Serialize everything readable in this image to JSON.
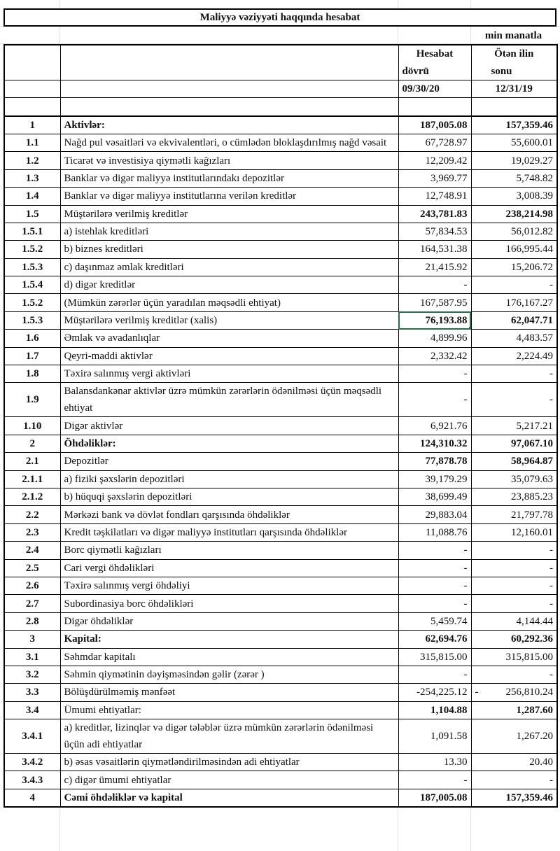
{
  "title": "Maliyyə vəziyyəti haqqında hesabat",
  "unit": "min manatla",
  "header": {
    "col1_line1": "Hesabat",
    "col1_line2": "dövrü",
    "col1_date": "09/30/20",
    "col2_line1": "Ötən ilin",
    "col2_line2": "sonu",
    "col2_date": "12/31/19"
  },
  "selection_color": "#217346",
  "rows": [
    {
      "no": "1",
      "label": "Aktivlər:",
      "v1": "187,005.08",
      "v2": "157,359.46",
      "emphasis": "all"
    },
    {
      "no": "1.1",
      "label": "Nağd pul vəsaitləri və  ekvivalentləri, o cümlədən bloklaşdırılmış nağd vəsait",
      "v1": "67,728.97",
      "v2": "55,600.01"
    },
    {
      "no": "1.2",
      "label": "Ticarət və investisiya qiymətli kağızları",
      "v1": "12,209.42",
      "v2": "19,029.27"
    },
    {
      "no": "1.3",
      "label": "Banklar və digər maliyyə institutlarındakı depozitlər",
      "v1": "3,969.77",
      "v2": "5,748.82"
    },
    {
      "no": "1.4",
      "label": "Banklar və digər maliyyə institutlarına verilən kreditlər",
      "v1": "12,748.91",
      "v2": "3,008.39"
    },
    {
      "no": "1.5",
      "label": "Müştərilərə verilmiş kreditlər",
      "v1": "243,781.83",
      "v2": "238,214.98",
      "emphasis": "values"
    },
    {
      "no": "1.5.1",
      "label": "a) istehlak kreditləri",
      "v1": "57,834.53",
      "v2": "56,012.82"
    },
    {
      "no": "1.5.2",
      "label": "b) biznes kreditləri",
      "v1": "164,531.38",
      "v2": "166,995.44"
    },
    {
      "no": "1.5.3",
      "label": "c) daşınmaz əmlak kreditləri",
      "v1": "21,415.92",
      "v2": "15,206.72"
    },
    {
      "no": "1.5.4",
      "label": "d) digər kreditlər",
      "v1": "-",
      "v2": "-"
    },
    {
      "no": "1.5.2",
      "label": "(Mümkün zərərlər üçün yaradılan məqsədli ehtiyat)",
      "v1": "167,587.95",
      "v2": "176,167.27"
    },
    {
      "no": "1.5.3",
      "label": "Müştərilərə verilmiş kreditlər (xalis)",
      "v1": "76,193.88",
      "v2": "62,047.71",
      "emphasis": "values",
      "selected": true
    },
    {
      "no": "1.6",
      "label": "Əmlak və avadanlıqlar",
      "v1": "4,899.96",
      "v2": "4,483.57"
    },
    {
      "no": "1.7",
      "label": "Qeyri-maddi aktivlər",
      "v1": "2,332.42",
      "v2": "2,224.49"
    },
    {
      "no": "1.8",
      "label": "Təxirə salınmış vergi aktivləri",
      "v1": "-",
      "v2": "-"
    },
    {
      "no": "1.9",
      "label": "Balansdankənar aktivlər üzrə mümkün zərərlərin ödənilməsi üçün məqsədli ehtiyat",
      "v1": "-",
      "v2": "-"
    },
    {
      "no": "1.10",
      "label": "Digər aktivlər",
      "v1": "6,921.76",
      "v2": "5,217.21"
    },
    {
      "no": "2",
      "label": "Öhdəliklər:",
      "v1": "124,310.32",
      "v2": "97,067.10",
      "emphasis": "all"
    },
    {
      "no": "2.1",
      "label": "Depozitlər",
      "v1": "77,878.78",
      "v2": "58,964.87",
      "emphasis": "values"
    },
    {
      "no": "2.1.1",
      "label": "a) fiziki şəxslərin depozitləri",
      "v1": "39,179.29",
      "v2": "35,079.63"
    },
    {
      "no": "2.1.2",
      "label": "b) hüquqi şəxslərin depozitləri",
      "v1": "38,699.49",
      "v2": "23,885.23"
    },
    {
      "no": "2.2",
      "label": "Mərkəzi bank və dövlət fondları qarşısında öhdəliklər",
      "v1": "29,883.04",
      "v2": "21,797.78"
    },
    {
      "no": "2.3",
      "label": "Kredit təşkilatları və digər maliyyə institutları qarşısında öhdəliklər",
      "v1": "11,088.76",
      "v2": "12,160.01"
    },
    {
      "no": "2.4",
      "label": "Borc qiymətli kağızları",
      "v1": "-",
      "v2": "-"
    },
    {
      "no": "2.5",
      "label": "Cari vergi öhdəlikləri",
      "v1": "-",
      "v2": "-"
    },
    {
      "no": "2.6",
      "label": "Təxirə salınmış vergi öhdəliyi",
      "v1": "-",
      "v2": "-"
    },
    {
      "no": "2.7",
      "label": "Subordinasiya borc öhdəlikləri",
      "v1": "-",
      "v2": "-"
    },
    {
      "no": "2.8",
      "label": "Digər öhdəliklər",
      "v1": "5,459.74",
      "v2": "4,144.44"
    },
    {
      "no": "3",
      "label": "Kapital:",
      "v1": "62,694.76",
      "v2": "60,292.36",
      "emphasis": "all"
    },
    {
      "no": "3.1",
      "label": "Səhmdar kapitalı",
      "v1": "315,815.00",
      "v2": "315,815.00"
    },
    {
      "no": "3.2",
      "label": "Səhmin qiymətinin dəyişməsindən gəlir (zərər )",
      "v1": "-",
      "v2": "-"
    },
    {
      "no": "3.3",
      "label": "Bölüşdürülməmiş mənfəət",
      "v1": "-254,225.12",
      "v2": "- 256,810.24"
    },
    {
      "no": "3.4",
      "label": "Ümumi ehtiyatlar:",
      "v1": "1,104.88",
      "v2": "1,287.60",
      "emphasis": "values"
    },
    {
      "no": "3.4.1",
      "label": "a) kreditlər, lizinqlər və digər tələblər üzrə mümkün zərərlərin ödənilməsi üçün adi ehtiyatlar",
      "v1": "1,091.58",
      "v2": "1,267.20"
    },
    {
      "no": "3.4.2",
      "label": "b) əsas vəsaitlərin qiymətləndirilməsindən adi ehtiyatlar",
      "v1": "13.30",
      "v2": "20.40"
    },
    {
      "no": "3.4.3",
      "label": "c) digər ümumi ehtiyatlar",
      "v1": "-",
      "v2": "-"
    },
    {
      "no": "4",
      "label": "Cəmi öhdəliklər və kapital",
      "v1": "187,005.08",
      "v2": "157,359.46",
      "emphasis": "all"
    }
  ]
}
